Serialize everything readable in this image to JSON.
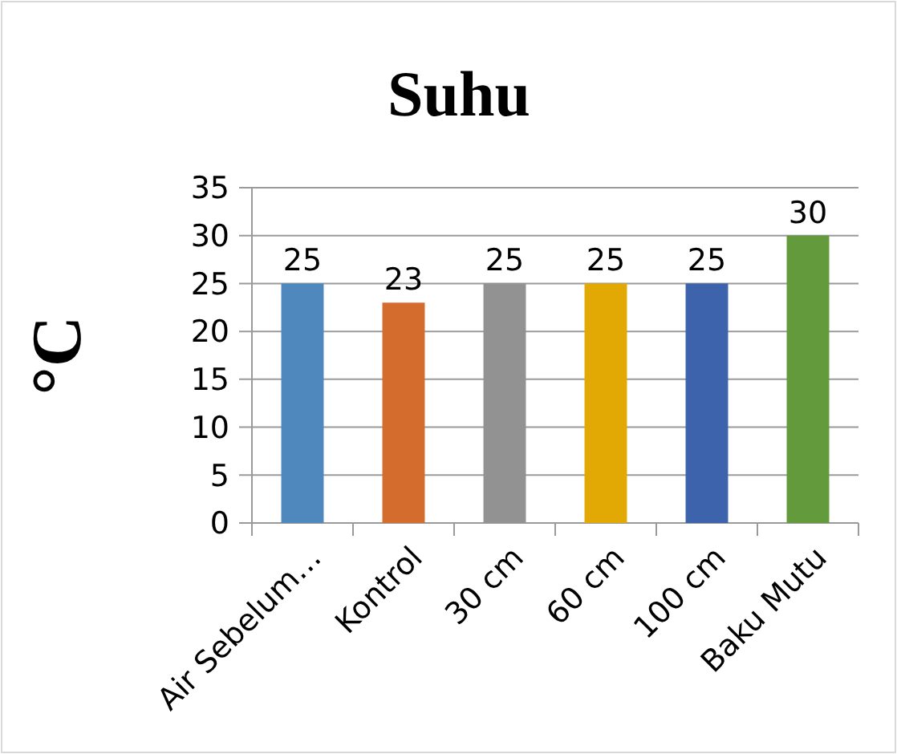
{
  "chart_data": {
    "type": "bar",
    "title": "Suhu",
    "ylabel": "°C",
    "categories": [
      "Air Sebelum…",
      "Kontrol",
      "30 cm",
      "60 cm",
      "100 cm",
      "Baku Mutu"
    ],
    "values": [
      25,
      23,
      25,
      25,
      25,
      30
    ],
    "colors": [
      "#4f88bd",
      "#d36c2c",
      "#929292",
      "#e2a904",
      "#3c63ab",
      "#629a3c"
    ],
    "ylim": [
      0,
      35
    ],
    "yticks": [
      0,
      5,
      10,
      15,
      20,
      25,
      30,
      35
    ],
    "grid": "y",
    "data_labels": true
  }
}
